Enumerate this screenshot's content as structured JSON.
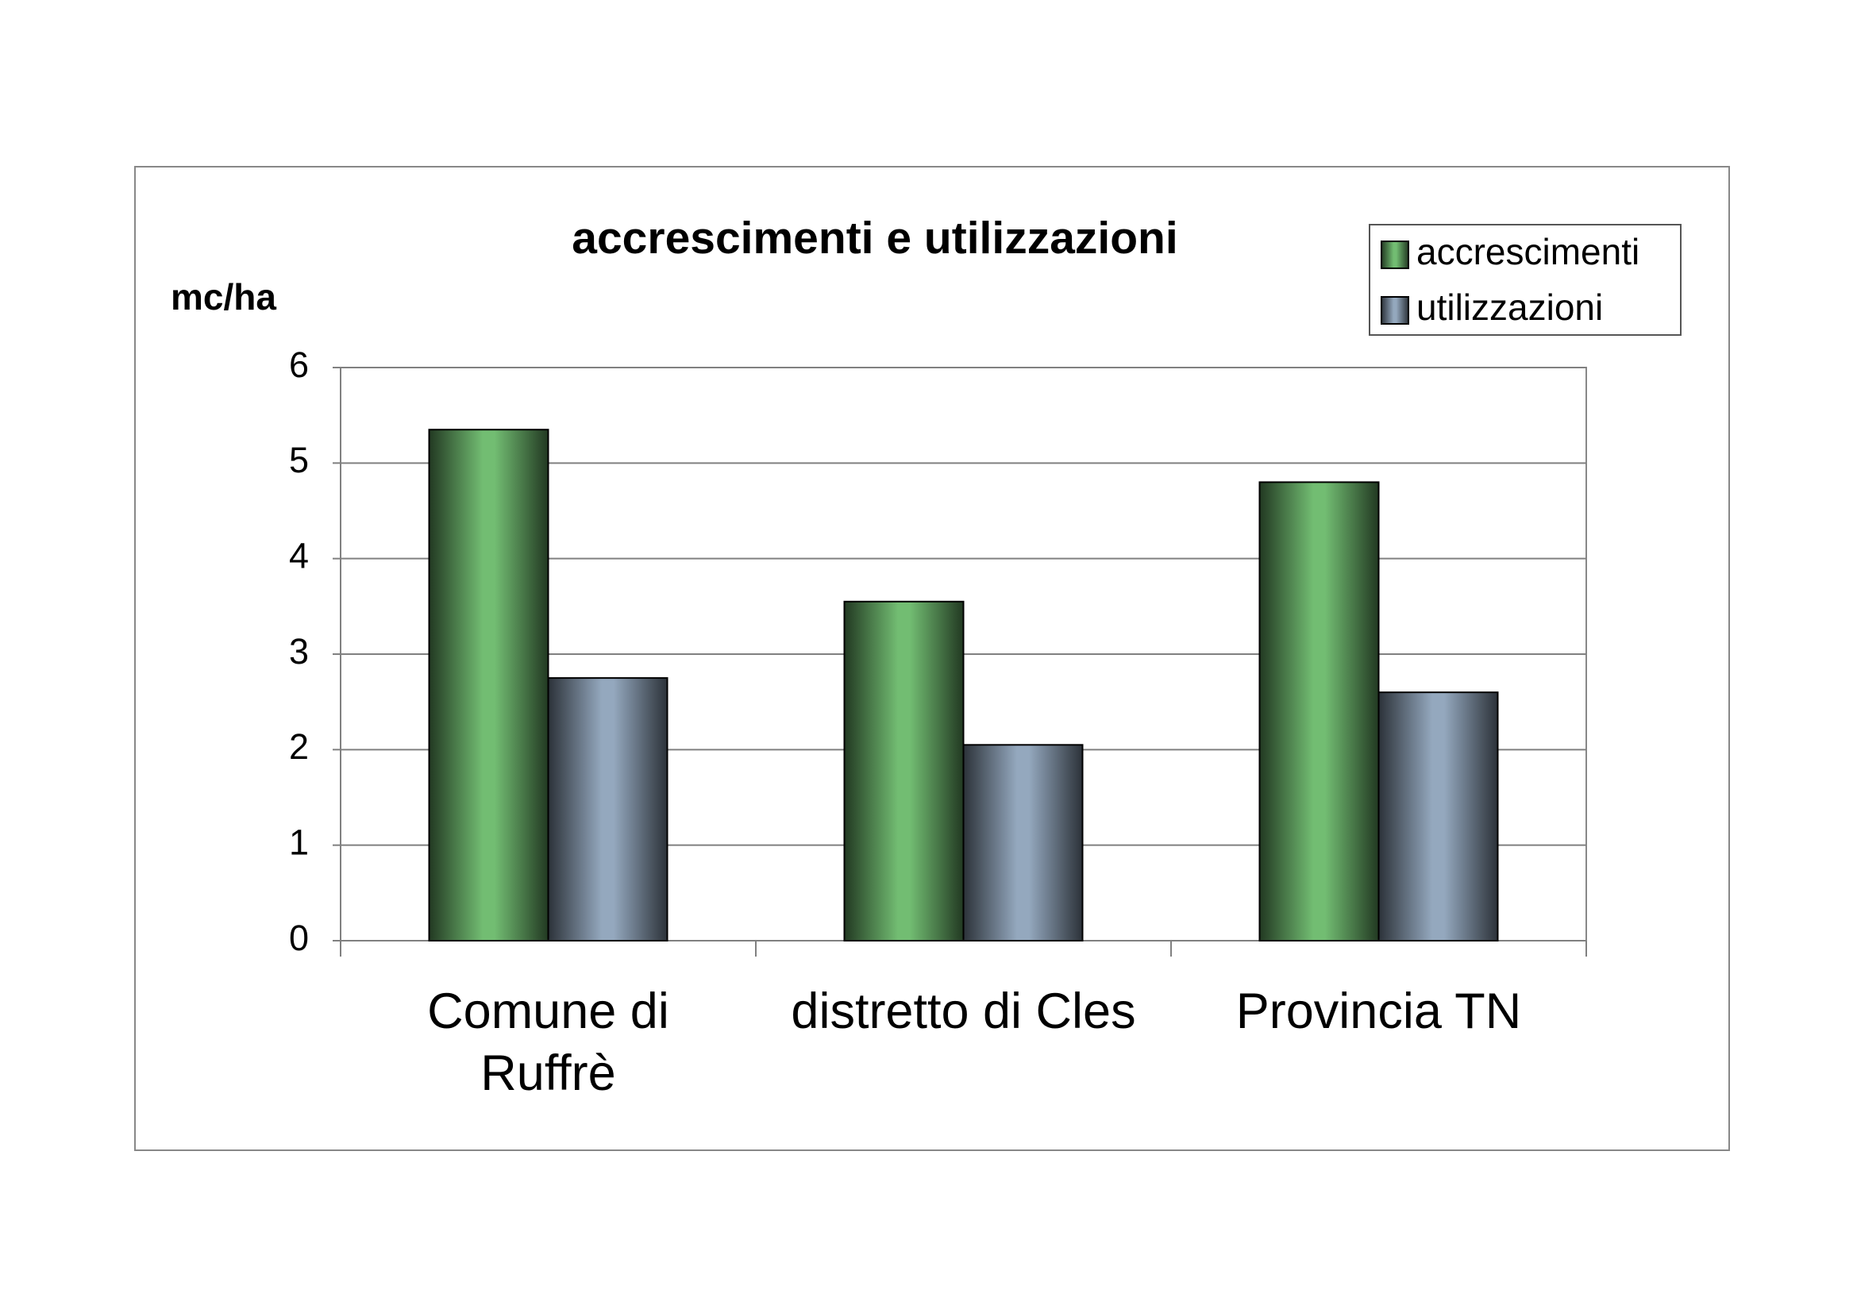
{
  "chart_data": {
    "type": "bar",
    "title": "accrescimenti e utilizzazioni",
    "y_axis_label": "mc/ha",
    "categories": [
      "Comune di Ruffrè",
      "distretto di Cles",
      "Provincia TN"
    ],
    "series": [
      {
        "name": "accrescimenti",
        "color": "#72bd72",
        "values": [
          5.35,
          3.55,
          4.8
        ]
      },
      {
        "name": "utilizzazioni",
        "color": "#94a8be",
        "values": [
          2.75,
          2.05,
          2.6
        ]
      }
    ],
    "ylim": [
      0,
      6
    ],
    "yticks": [
      0,
      1,
      2,
      3,
      4,
      5,
      6
    ],
    "grid": true,
    "legend": "top-right"
  }
}
